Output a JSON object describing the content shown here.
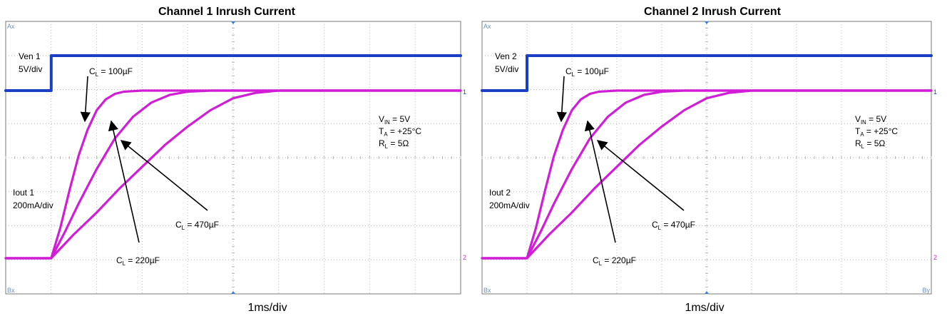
{
  "colors": {
    "enable_trace": "#1a3fc4",
    "current_trace": "#d01ed6",
    "grid": "#b8b8b8",
    "border": "#7a7a7a",
    "annotation": "#000000",
    "corner_label": "#6c8fbf",
    "ch2_marker": "#c233c2"
  },
  "footer": {
    "timebase": "1ms/div"
  },
  "chart_data": [
    {
      "type": "line",
      "title": "Channel 1 Inrush Current",
      "xlabel": "1ms/div",
      "ylabel": "",
      "x_unit": "ms",
      "xlim": [
        0,
        10
      ],
      "grid": true,
      "grid_divisions": {
        "x": 10,
        "y": 8
      },
      "corner_labels": {
        "top_left": "Ax",
        "bottom_left": "Bx",
        "bottom_right": ""
      },
      "channel_markers": {
        "top": "1",
        "bottom": "2"
      },
      "enable_label": [
        "Ven 1",
        "5V/div"
      ],
      "current_label": [
        "Iout 1",
        "200mA/div"
      ],
      "conditions": {
        "vin": "= 5V",
        "ta": "= +25°C",
        "rl": "= 5Ω"
      },
      "series": [
        {
          "name": "Ven 1",
          "color_key": "enable_trace",
          "x": [
            0,
            1,
            1,
            10
          ],
          "y": [
            0,
            0,
            5,
            5
          ]
        },
        {
          "name": "CL = 100µF",
          "color_key": "current_trace",
          "x": [
            0,
            1.0,
            1.2,
            1.4,
            1.6,
            1.8,
            2.0,
            2.2,
            2.4,
            2.6,
            3.0,
            4.0,
            10
          ],
          "y": [
            0,
            0,
            140,
            310,
            470,
            590,
            680,
            730,
            755,
            765,
            770,
            770,
            770
          ]
        },
        {
          "name": "CL = 220µF",
          "color_key": "current_trace",
          "x": [
            0,
            1.0,
            1.3,
            1.6,
            2.0,
            2.4,
            2.8,
            3.2,
            3.6,
            4.0,
            4.5,
            10
          ],
          "y": [
            0,
            0,
            120,
            250,
            410,
            550,
            650,
            715,
            750,
            765,
            770,
            770
          ]
        },
        {
          "name": "CL = 470µF",
          "color_key": "current_trace",
          "x": [
            0,
            1.0,
            1.5,
            2.0,
            2.5,
            3.0,
            3.5,
            4.0,
            4.5,
            5.0,
            5.5,
            6.0,
            10
          ],
          "y": [
            0,
            0,
            110,
            210,
            320,
            420,
            520,
            605,
            680,
            735,
            760,
            770,
            770
          ]
        }
      ],
      "annotations": [
        {
          "name": "CL = 100µF",
          "sub": "L",
          "value": "= 100µF"
        },
        {
          "name": "CL = 220µF",
          "sub": "L",
          "value": "= 220µF"
        },
        {
          "name": "CL = 470µF",
          "sub": "L",
          "value": "= 470µF"
        }
      ]
    },
    {
      "type": "line",
      "title": "Channel 2 Inrush Current",
      "xlabel": "1ms/div",
      "ylabel": "",
      "x_unit": "ms",
      "xlim": [
        0,
        10
      ],
      "grid": true,
      "grid_divisions": {
        "x": 10,
        "y": 8
      },
      "corner_labels": {
        "top_left": "Ax",
        "bottom_left": "Bx",
        "bottom_right": "By"
      },
      "channel_markers": {
        "top": "1",
        "bottom": "2"
      },
      "enable_label": [
        "Ven 2",
        "5V/div"
      ],
      "current_label": [
        "Iout 2",
        "200mA/div"
      ],
      "conditions": {
        "vin": "= 5V",
        "ta": "= +25°C",
        "rl": "= 5Ω"
      },
      "series": [
        {
          "name": "Ven 2",
          "color_key": "enable_trace",
          "x": [
            0,
            1,
            1,
            10
          ],
          "y": [
            0,
            0,
            5,
            5
          ]
        },
        {
          "name": "CL = 100µF",
          "color_key": "current_trace",
          "x": [
            0,
            1.0,
            1.2,
            1.4,
            1.6,
            1.8,
            2.0,
            2.2,
            2.4,
            2.6,
            3.0,
            4.0,
            10
          ],
          "y": [
            0,
            0,
            140,
            310,
            470,
            590,
            680,
            730,
            755,
            765,
            770,
            770,
            770
          ]
        },
        {
          "name": "CL = 220µF",
          "color_key": "current_trace",
          "x": [
            0,
            1.0,
            1.3,
            1.6,
            2.0,
            2.4,
            2.8,
            3.2,
            3.6,
            4.0,
            4.5,
            10
          ],
          "y": [
            0,
            0,
            120,
            250,
            410,
            550,
            650,
            715,
            750,
            765,
            770,
            770
          ]
        },
        {
          "name": "CL = 470µF",
          "color_key": "current_trace",
          "x": [
            0,
            1.0,
            1.5,
            2.0,
            2.5,
            3.0,
            3.5,
            4.0,
            4.5,
            5.0,
            5.5,
            6.0,
            10
          ],
          "y": [
            0,
            0,
            110,
            210,
            320,
            420,
            520,
            605,
            680,
            735,
            760,
            770,
            770
          ]
        }
      ],
      "annotations": [
        {
          "name": "CL = 100µF",
          "sub": "L",
          "value": "= 100µF"
        },
        {
          "name": "CL = 220µF",
          "sub": "L",
          "value": "= 220µF"
        },
        {
          "name": "CL = 470µF",
          "sub": "L",
          "value": "= 470µF"
        }
      ]
    }
  ]
}
